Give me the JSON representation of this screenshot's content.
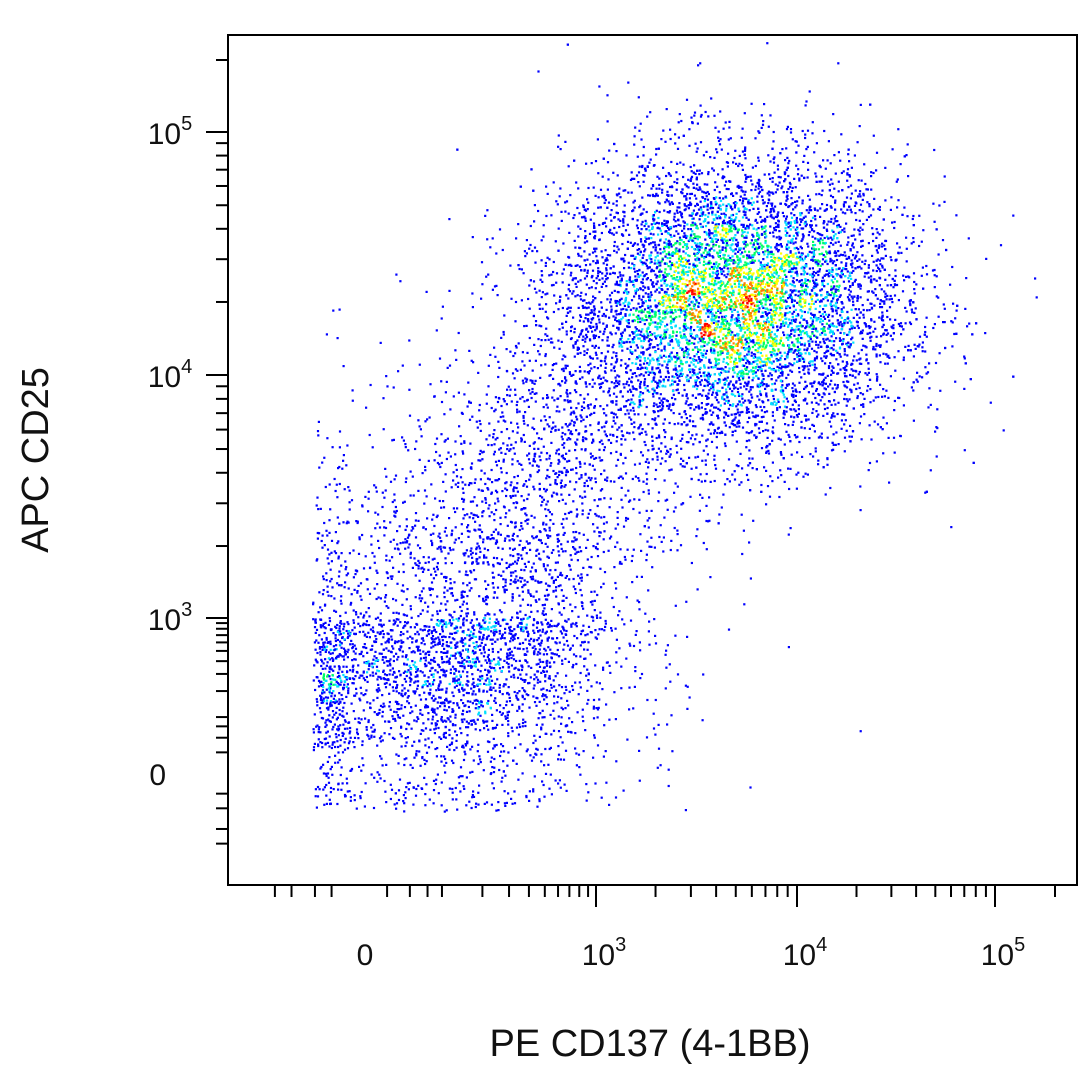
{
  "chart_data": {
    "type": "scatter",
    "subtype": "flow-cytometry density dot plot",
    "xlabel": "PE CD137 (4-1BB)",
    "ylabel": "APC CD25",
    "x_scale": "biexponential (logicle)",
    "y_scale": "biexponential (logicle)",
    "xlim": [
      -200,
      200000
    ],
    "ylim": [
      -200,
      200000
    ],
    "x_ticks": [
      {
        "value": 0,
        "base": "0",
        "exp": ""
      },
      {
        "value": 1000,
        "base": "10",
        "exp": "3"
      },
      {
        "value": 10000,
        "base": "10",
        "exp": "4"
      },
      {
        "value": 100000,
        "base": "10",
        "exp": "5"
      }
    ],
    "y_ticks": [
      {
        "value": 0,
        "base": "0",
        "exp": ""
      },
      {
        "value": 1000,
        "base": "10",
        "exp": "3"
      },
      {
        "value": 10000,
        "base": "10",
        "exp": "4"
      },
      {
        "value": 100000,
        "base": "10",
        "exp": "5"
      }
    ],
    "grid": false,
    "legend": "none",
    "color_scale": [
      "#0000ff",
      "#00e0ff",
      "#00ff66",
      "#ffff00",
      "#ff8000",
      "#ff0000"
    ],
    "populations": [
      {
        "description": "main activated cluster",
        "x_center": 5000,
        "y_center": 20000,
        "weight": 0.62,
        "spread_x": 0.42,
        "spread_y": 0.3
      },
      {
        "description": "low/negative cluster",
        "x_center": 150,
        "y_center": 400,
        "weight": 0.22,
        "spread_x": 0.5,
        "spread_y": 0.55
      },
      {
        "description": "diagonal transition",
        "x_center": 500,
        "y_center": 3000,
        "weight": 0.16,
        "spread_x": 0.45,
        "spread_y": 0.45
      }
    ],
    "approx_event_count": 12000
  }
}
